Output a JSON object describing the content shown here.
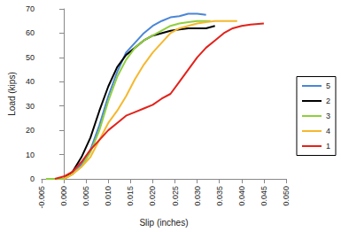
{
  "chart_data": {
    "type": "line",
    "x_label": "Slip (inches)",
    "y_label": "Load (kips)",
    "xlim": [
      -0.005,
      0.05
    ],
    "xticks": [
      {
        "value": -0.005,
        "label": "-0.005"
      },
      {
        "value": 0,
        "label": "0.000"
      },
      {
        "value": 0.005,
        "label": "0.005"
      },
      {
        "value": 0.01,
        "label": "0.010"
      },
      {
        "value": 0.015,
        "label": "0.015"
      },
      {
        "value": 0.02,
        "label": "0.020"
      },
      {
        "value": 0.025,
        "label": "0.025"
      },
      {
        "value": 0.03,
        "label": "0.030"
      },
      {
        "value": 0.035,
        "label": "0.035"
      },
      {
        "value": 0.04,
        "label": "0.040"
      },
      {
        "value": 0.045,
        "label": "0.045"
      },
      {
        "value": 0.05,
        "label": "0.050"
      }
    ],
    "ylim": [
      0,
      70
    ],
    "yticks": [
      0,
      10,
      20,
      30,
      40,
      50,
      60,
      70
    ],
    "grid": false,
    "legend": "right",
    "series": [
      {
        "name": "5",
        "color": "#4a86d8",
        "x": [
          0,
          0.002,
          0.004,
          0.006,
          0.008,
          0.01,
          0.012,
          0.014,
          0.016,
          0.018,
          0.02,
          0.022,
          0.024,
          0.026,
          0.028,
          0.03,
          0.032
        ],
        "values": [
          0,
          2,
          6,
          12,
          22,
          34,
          44,
          52,
          56,
          60,
          63,
          65,
          66.5,
          67,
          68,
          68,
          67.5
        ]
      },
      {
        "name": "2",
        "color": "#000000",
        "x": [
          0,
          0.002,
          0.004,
          0.006,
          0.008,
          0.01,
          0.012,
          0.014,
          0.016,
          0.018,
          0.02,
          0.022,
          0.024,
          0.026,
          0.028,
          0.03,
          0.032,
          0.034
        ],
        "values": [
          0,
          3,
          9,
          17,
          28,
          38,
          46,
          51,
          54,
          57,
          59,
          60,
          61,
          61.5,
          62,
          62,
          62,
          63
        ]
      },
      {
        "name": "3",
        "color": "#8fcf3c",
        "x": [
          -0.004,
          0,
          0.002,
          0.004,
          0.006,
          0.008,
          0.01,
          0.012,
          0.014,
          0.016,
          0.018,
          0.02,
          0.022,
          0.024,
          0.026,
          0.028,
          0.03,
          0.033
        ],
        "values": [
          0,
          0,
          2,
          5,
          11,
          20,
          32,
          42,
          49,
          54,
          57,
          59,
          61,
          63,
          64,
          64.5,
          65,
          65
        ]
      },
      {
        "name": "4",
        "color": "#f5b82e",
        "x": [
          0,
          0.002,
          0.004,
          0.006,
          0.008,
          0.01,
          0.012,
          0.014,
          0.016,
          0.018,
          0.02,
          0.022,
          0.024,
          0.026,
          0.028,
          0.03,
          0.032,
          0.034,
          0.036,
          0.039
        ],
        "values": [
          0,
          2,
          5,
          9,
          16,
          23,
          28,
          34,
          41,
          47,
          52,
          56,
          60,
          62,
          63,
          64,
          64.5,
          65,
          65,
          65
        ]
      },
      {
        "name": "1",
        "color": "#e3221b",
        "x": [
          -0.002,
          0,
          0.002,
          0.004,
          0.006,
          0.008,
          0.01,
          0.012,
          0.014,
          0.016,
          0.018,
          0.02,
          0.022,
          0.024,
          0.026,
          0.028,
          0.03,
          0.032,
          0.034,
          0.036,
          0.038,
          0.04,
          0.042,
          0.045
        ],
        "values": [
          0,
          1,
          3,
          7,
          12,
          16,
          20,
          23,
          26,
          27.5,
          29,
          30.5,
          33,
          35,
          40,
          45,
          50,
          54,
          57,
          60,
          62,
          63,
          63.5,
          64
        ]
      }
    ]
  }
}
